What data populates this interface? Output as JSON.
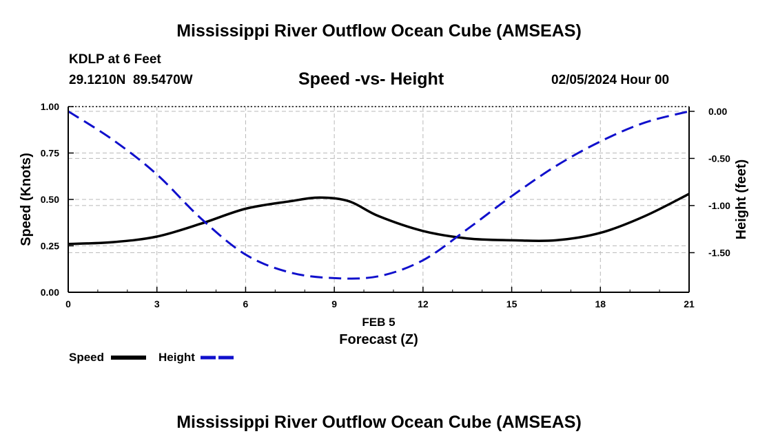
{
  "header": {
    "title": "Mississippi River Outflow Ocean Cube (AMSEAS)",
    "station": "KDLP at 6 Feet",
    "coords": "29.1210N  89.5470W",
    "subtitle": "Speed -vs- Height",
    "date": "02/05/2024 Hour 00"
  },
  "footer": {
    "title": "Mississippi River Outflow Ocean Cube (AMSEAS)"
  },
  "legend": {
    "speed_label": "Speed",
    "height_label": "Height"
  },
  "colors": {
    "speed": "#000000",
    "height": "#1010cc",
    "grid": "#b8b8b8"
  },
  "chart_data": {
    "type": "line",
    "xlabel": "Forecast (Z)",
    "xsublabel": "FEB 5",
    "ylabel_left": "Speed (Knots)",
    "ylabel_right": "Height (feet)",
    "xlim": [
      0,
      21
    ],
    "ylim_left": [
      0,
      1
    ],
    "ylim_right": [
      -1.92,
      0.05
    ],
    "x_ticks": [
      0,
      3,
      6,
      9,
      12,
      15,
      18,
      21
    ],
    "x_tick_labels": [
      "0",
      "3",
      "6",
      "9",
      "12",
      "15",
      "18",
      "21"
    ],
    "y_left_ticks": [
      0,
      0.25,
      0.5,
      0.75,
      1.0
    ],
    "y_left_tick_labels": [
      "0.00",
      "0.25",
      "0.50",
      "0.75",
      "1.00"
    ],
    "y_right_ticks": [
      0,
      -0.5,
      -1.0,
      -1.5
    ],
    "y_right_tick_labels": [
      "0.00",
      "-0.50",
      "-1.00",
      "-1.50"
    ],
    "grid": true,
    "series": [
      {
        "name": "Speed",
        "axis": "left",
        "style": "solid",
        "x": [
          0,
          1.5,
          3,
          4.5,
          6,
          7.5,
          8.5,
          9.5,
          10.5,
          12,
          13.5,
          15,
          16.5,
          18,
          19.5,
          21
        ],
        "values": [
          0.26,
          0.27,
          0.3,
          0.37,
          0.45,
          0.49,
          0.51,
          0.49,
          0.41,
          0.33,
          0.29,
          0.28,
          0.28,
          0.32,
          0.41,
          0.53
        ]
      },
      {
        "name": "Height",
        "axis": "right",
        "style": "dashed",
        "x": [
          0,
          1.5,
          3,
          4.5,
          6,
          7.5,
          9,
          10.5,
          12,
          13.5,
          15,
          16.5,
          18,
          19.5,
          21
        ],
        "values": [
          0.0,
          -0.3,
          -0.67,
          -1.14,
          -1.52,
          -1.71,
          -1.77,
          -1.75,
          -1.58,
          -1.25,
          -0.9,
          -0.58,
          -0.32,
          -0.12,
          0.0
        ]
      }
    ]
  }
}
